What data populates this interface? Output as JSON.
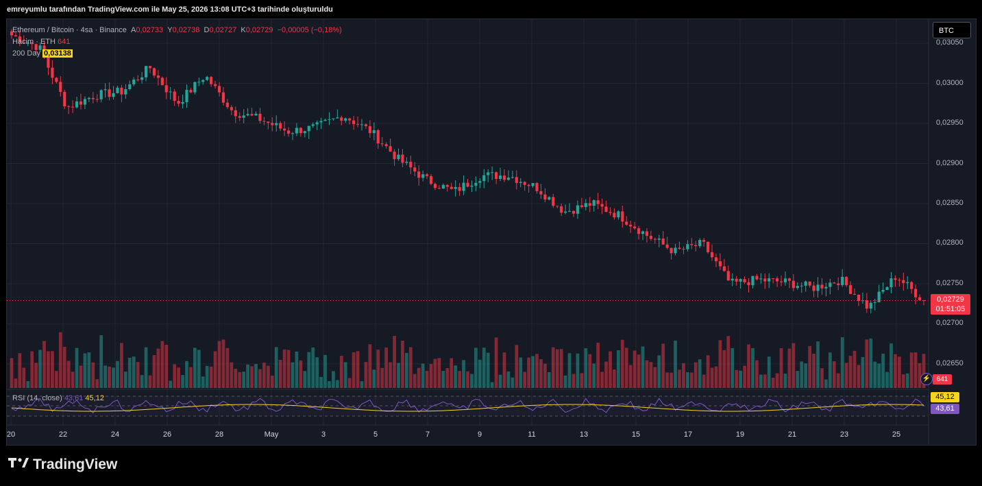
{
  "header": {
    "caption": "emreyumlu tarafından TradingView.com ile May 25, 2026 13:08 UTC+3 tarihinde oluşturuldu"
  },
  "legend": {
    "symbol": "Ethereum / Bitcoin · 4sa · Binance",
    "a_label": "A",
    "a_value": "0,02733",
    "y_label": "Y",
    "y_value": "0,02738",
    "d_label": "D",
    "d_value": "0,02727",
    "k_label": "K",
    "k_value": "0,02729",
    "change": "−0,00005 (−0,18%)",
    "volume_label": "Hacim · ETH",
    "volume_value": "641",
    "ma_label": "200 Day",
    "ma_value": "0,03138"
  },
  "currency_button": "BTC",
  "price_label": {
    "price": "0,02729",
    "countdown": "01:51:05"
  },
  "volume_label_box": "641",
  "rsi": {
    "label": "RSI (14, close)",
    "rsi_value": "43,61",
    "ma_value": "45,12"
  },
  "brand": {
    "logo": "17",
    "name": "TradingView"
  },
  "colors": {
    "up": "#26a69a",
    "down": "#f23645",
    "bg": "#161a25",
    "rsi": "#7e57c2",
    "rsi_ma": "#f7d51d"
  },
  "chart_data": {
    "type": "candlestick",
    "yticks": [
      "0,03050",
      "0,03000",
      "0,02950",
      "0,02900",
      "0,02850",
      "0,02800",
      "0,02750",
      "0,02700",
      "0,02650"
    ],
    "ylim": [
      0.0262,
      0.0308
    ],
    "xticks": [
      "20",
      "22",
      "24",
      "26",
      "28",
      "May",
      "3",
      "5",
      "7",
      "9",
      "11",
      "13",
      "15",
      "17",
      "19",
      "21",
      "23",
      "25"
    ],
    "last_price": 0.02729,
    "ohlc_anchors": [
      {
        "day": "20",
        "close": 0.0306
      },
      {
        "day": "22",
        "close": 0.03045
      },
      {
        "day": "23",
        "close": 0.0297
      },
      {
        "day": "24",
        "close": 0.02985
      },
      {
        "day": "25",
        "close": 0.0299
      },
      {
        "day": "26",
        "close": 0.0302
      },
      {
        "day": "27",
        "close": 0.02975
      },
      {
        "day": "28",
        "close": 0.0301
      },
      {
        "day": "29",
        "close": 0.02965
      },
      {
        "day": "May",
        "close": 0.02955
      },
      {
        "day": "2",
        "close": 0.0294
      },
      {
        "day": "3",
        "close": 0.02945
      },
      {
        "day": "4",
        "close": 0.0296
      },
      {
        "day": "5",
        "close": 0.0294
      },
      {
        "day": "6",
        "close": 0.02905
      },
      {
        "day": "7",
        "close": 0.0288
      },
      {
        "day": "8",
        "close": 0.02865
      },
      {
        "day": "9",
        "close": 0.02885
      },
      {
        "day": "10",
        "close": 0.02885
      },
      {
        "day": "11",
        "close": 0.0287
      },
      {
        "day": "12",
        "close": 0.0284
      },
      {
        "day": "13",
        "close": 0.0285
      },
      {
        "day": "14",
        "close": 0.02835
      },
      {
        "day": "15",
        "close": 0.0281
      },
      {
        "day": "16",
        "close": 0.0279
      },
      {
        "day": "17",
        "close": 0.028
      },
      {
        "day": "18",
        "close": 0.0275
      },
      {
        "day": "19",
        "close": 0.02755
      },
      {
        "day": "20",
        "close": 0.02752
      },
      {
        "day": "21",
        "close": 0.02745
      },
      {
        "day": "22",
        "close": 0.02755
      },
      {
        "day": "23",
        "close": 0.0272
      },
      {
        "day": "24",
        "close": 0.0276
      },
      {
        "day": "25",
        "close": 0.02729
      }
    ]
  }
}
